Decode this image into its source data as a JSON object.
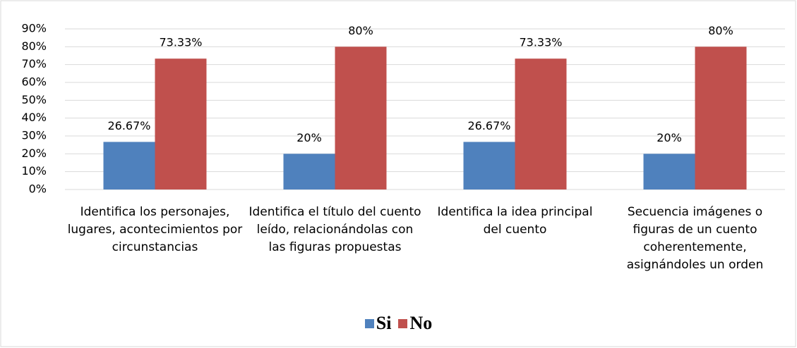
{
  "chart_data": {
    "type": "bar",
    "categories": [
      "Identifica los personajes, lugares, acontecimientos por circunstancias",
      "Identifica el título del cuento leído, relacionándolas con las figuras propuestas",
      "Identifica la idea principal del cuento",
      "Secuencia imágenes o figuras de un cuento coherentemente, asignándoles un orden"
    ],
    "series": [
      {
        "name": "Si",
        "color": "#4f81bd",
        "values": [
          26.67,
          20,
          26.67,
          20
        ],
        "value_labels": [
          "26.67%",
          "20%",
          "26.67%",
          "20%"
        ]
      },
      {
        "name": "No",
        "color": "#c0504d",
        "values": [
          73.33,
          80,
          73.33,
          80
        ],
        "value_labels": [
          "73.33%",
          "80%",
          "73.33%",
          "80%"
        ]
      }
    ],
    "ylim": [
      0,
      90
    ],
    "yticks": [
      {
        "value": 0,
        "label": "0%"
      },
      {
        "value": 10,
        "label": "10%"
      },
      {
        "value": 20,
        "label": "20%"
      },
      {
        "value": 30,
        "label": "30%"
      },
      {
        "value": 40,
        "label": "40%"
      },
      {
        "value": 50,
        "label": "50%"
      },
      {
        "value": 60,
        "label": "60%"
      },
      {
        "value": 70,
        "label": "70%"
      },
      {
        "value": 80,
        "label": "80%"
      },
      {
        "value": 90,
        "label": "90%"
      }
    ],
    "grid": true,
    "legend": "bottom"
  }
}
